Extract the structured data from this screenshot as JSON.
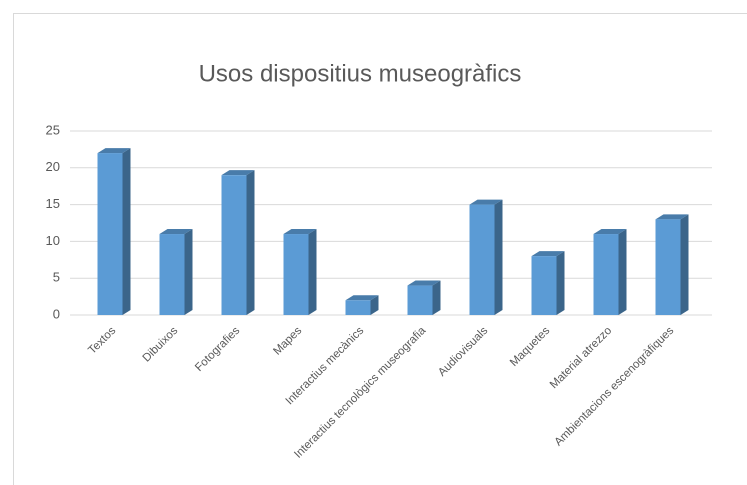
{
  "chart_data": {
    "type": "bar3d",
    "title": "Usos dispositius museogràfics",
    "categories": [
      "Textos",
      "Dibuixos",
      "Fotografies",
      "Mapes",
      "Interactius mecànics",
      "Interactius tecnològics museografia",
      "Audiovisuals",
      "Maquetes",
      "Material atrezzo",
      "Ambientacions escenogràfiques"
    ],
    "values": [
      22,
      11,
      19,
      11,
      2,
      4,
      15,
      8,
      11,
      13
    ],
    "color": "#5b9bd5",
    "ylim": [
      0,
      25
    ],
    "yticks": [
      0,
      5,
      10,
      15,
      20,
      25
    ],
    "grid": true
  }
}
